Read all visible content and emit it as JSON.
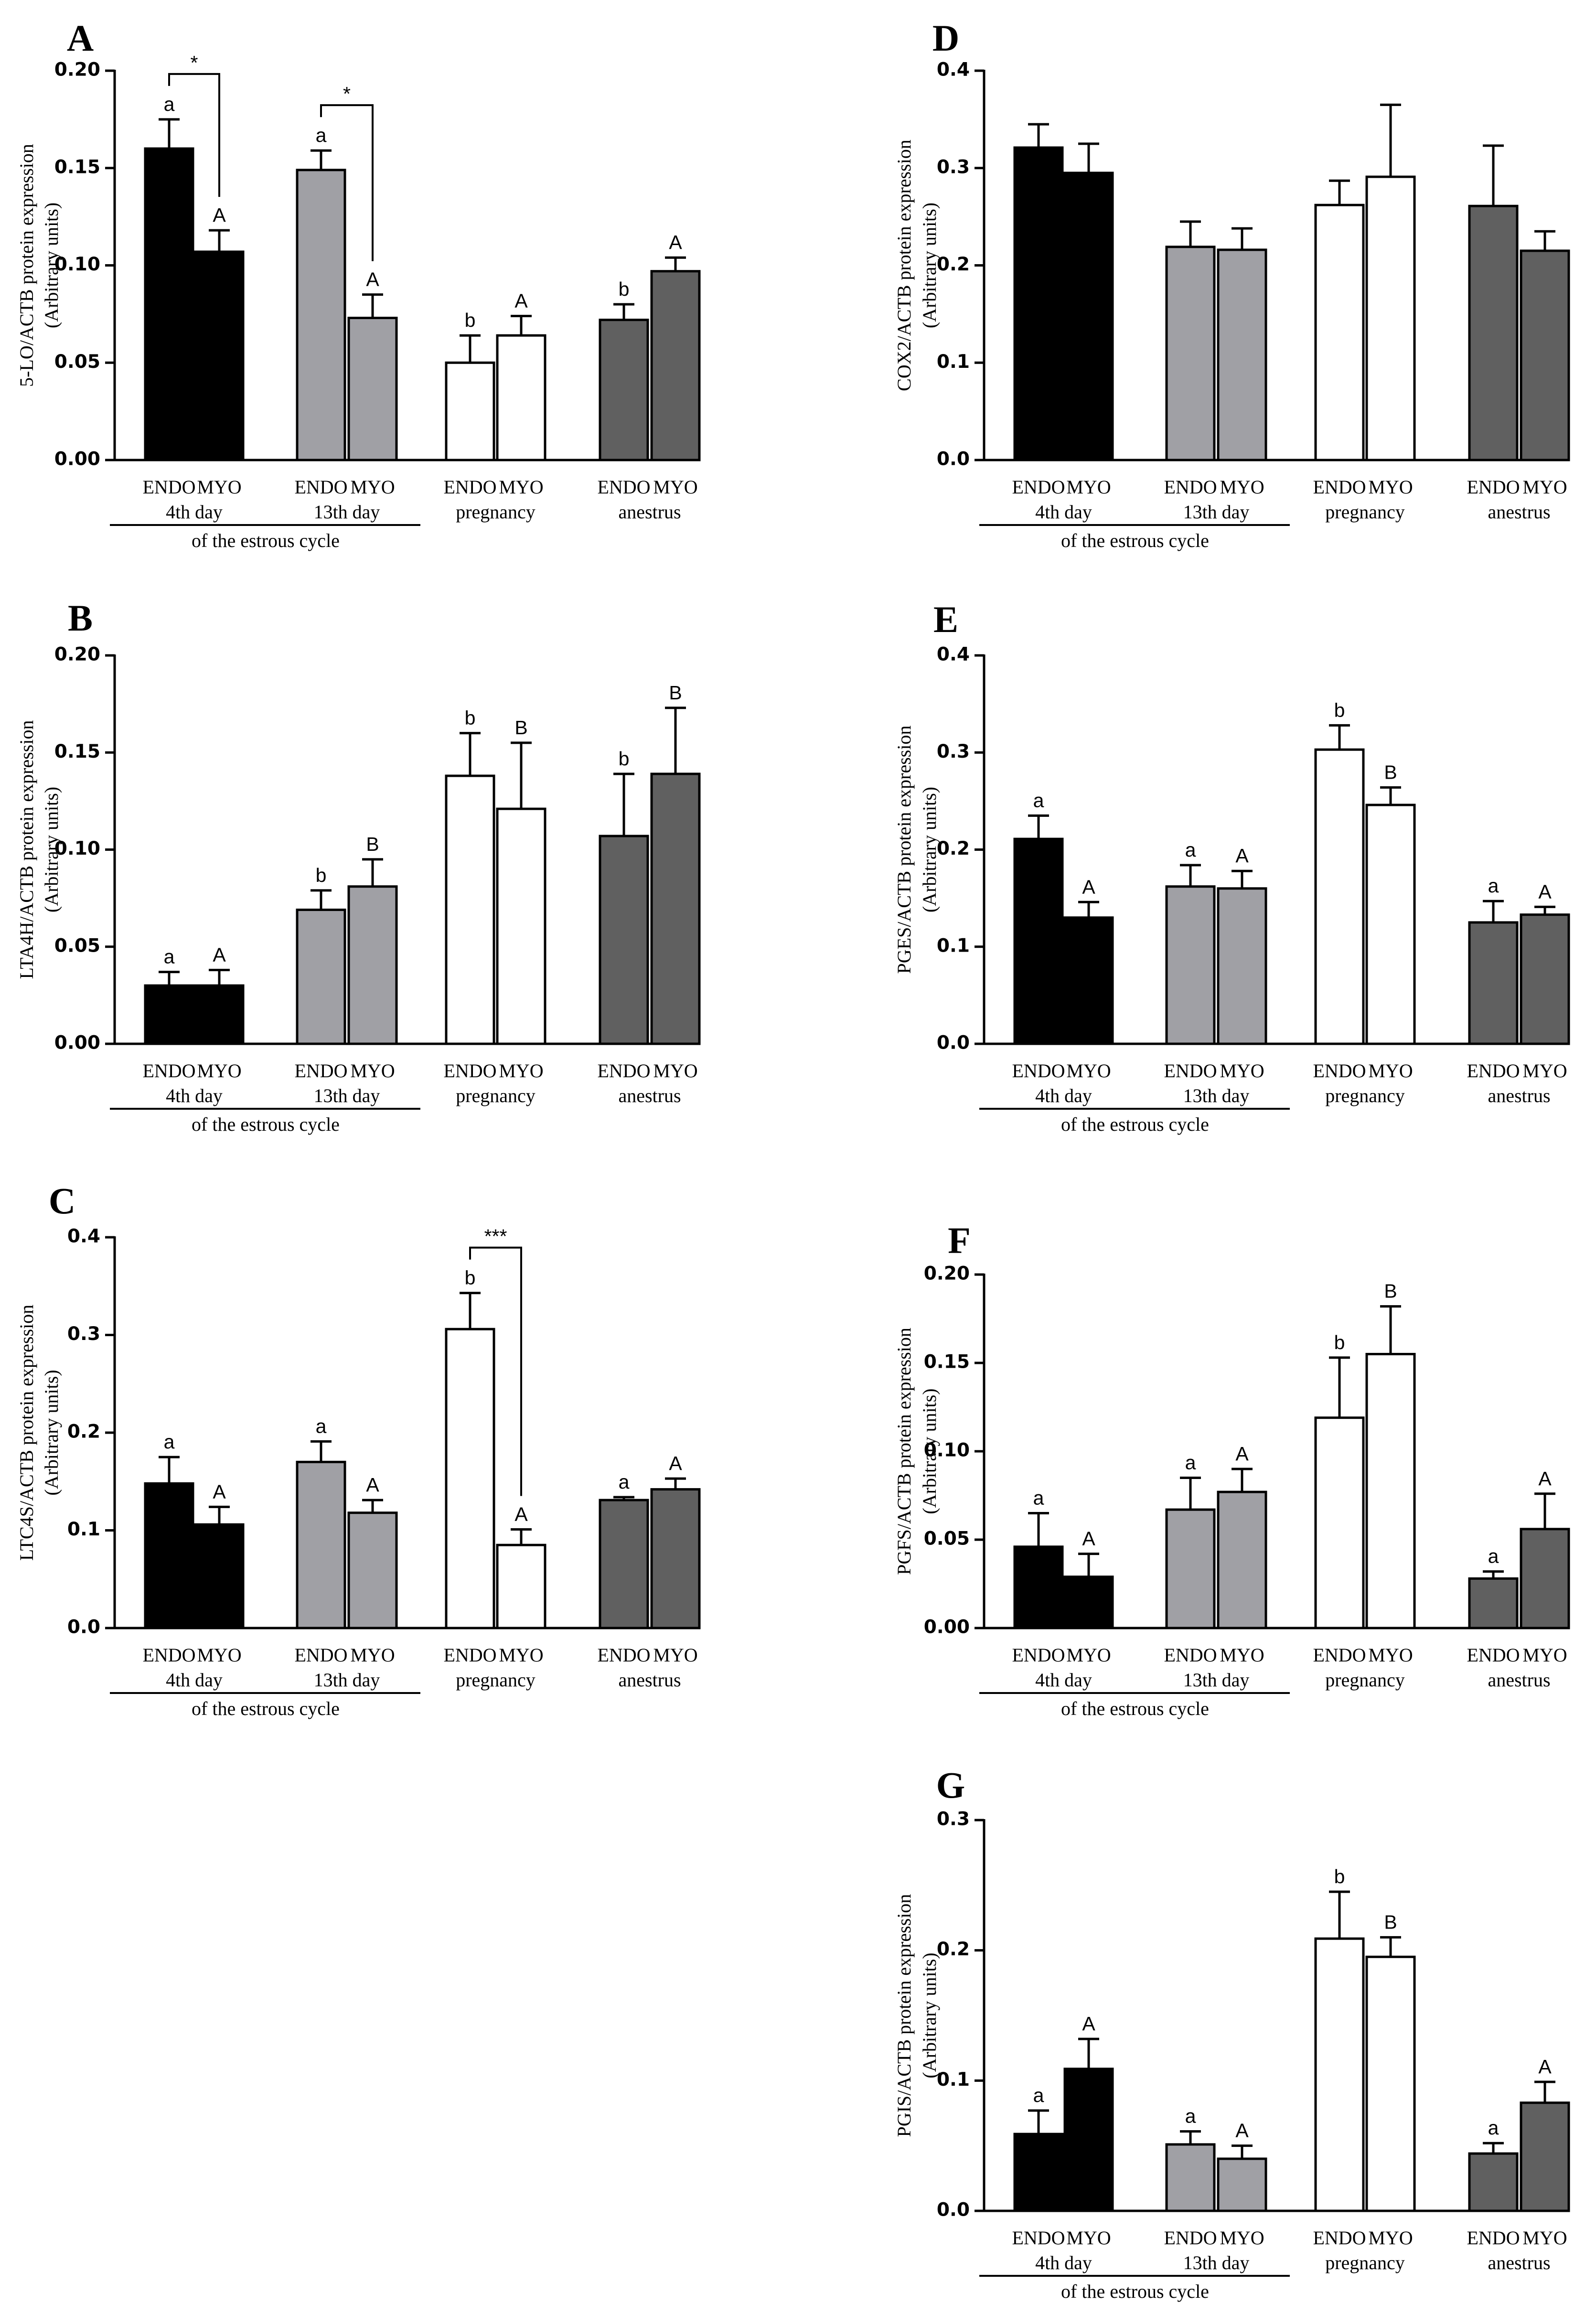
{
  "colors": {
    "endo4": "#000000",
    "d13": "#a0a0a5",
    "preg": "#ffffff",
    "anes": "#606060"
  },
  "chart_data": [
    {
      "type": "bar",
      "panel": "A",
      "ylabel": "5-LO/ACTB protein expression",
      "ylabel2": "(Arbitrary units)",
      "ylim": [
        0,
        0.2
      ],
      "yticks": [
        "0.00",
        "0.05",
        "0.10",
        "0.15",
        "0.20"
      ],
      "ytick_values": [
        0,
        0.05,
        0.1,
        0.15,
        0.2
      ],
      "categories": [
        "ENDO",
        "MYO",
        "ENDO",
        "MYO",
        "ENDO",
        "MYO",
        "ENDO",
        "MYO"
      ],
      "groups": [
        "4th day",
        "13th day",
        "pregnancy",
        "anestrus"
      ],
      "group_footer": "of the estrous cycle",
      "values": [
        0.16,
        0.107,
        0.149,
        0.073,
        0.05,
        0.064,
        0.072,
        0.097
      ],
      "errors": [
        0.015,
        0.011,
        0.01,
        0.012,
        0.014,
        0.01,
        0.008,
        0.007
      ],
      "labels": [
        "a",
        "A",
        "a",
        "A",
        "b",
        "A",
        "b",
        "A"
      ],
      "brackets": [
        {
          "from": 0,
          "to": 1,
          "text": "*"
        },
        {
          "from": 2,
          "to": 3,
          "text": "*"
        }
      ]
    },
    {
      "type": "bar",
      "panel": "B",
      "ylabel": "LTA4H/ACTB protein expression",
      "ylabel2": "(Arbitrary units)",
      "ylim": [
        0,
        0.2
      ],
      "yticks": [
        "0.00",
        "0.05",
        "0.10",
        "0.15",
        "0.20"
      ],
      "ytick_values": [
        0,
        0.05,
        0.1,
        0.15,
        0.2
      ],
      "categories": [
        "ENDO",
        "MYO",
        "ENDO",
        "MYO",
        "ENDO",
        "MYO",
        "ENDO",
        "MYO"
      ],
      "groups": [
        "4th day",
        "13th day",
        "pregnancy",
        "anestrus"
      ],
      "group_footer": "of the estrous cycle",
      "values": [
        0.03,
        0.03,
        0.069,
        0.081,
        0.138,
        0.121,
        0.107,
        0.139
      ],
      "errors": [
        0.007,
        0.008,
        0.01,
        0.014,
        0.022,
        0.034,
        0.032,
        0.034
      ],
      "labels": [
        "a",
        "A",
        "b",
        "B",
        "b",
        "B",
        "b",
        "B"
      ],
      "brackets": []
    },
    {
      "type": "bar",
      "panel": "C",
      "ylabel": "LTC4S/ACTB protein expression",
      "ylabel2": "(Arbitrary units)",
      "ylim": [
        0,
        0.4
      ],
      "yticks": [
        "0.0",
        "0.1",
        "0.2",
        "0.3",
        "0.4"
      ],
      "ytick_values": [
        0,
        0.1,
        0.2,
        0.3,
        0.4
      ],
      "categories": [
        "ENDO",
        "MYO",
        "ENDO",
        "MYO",
        "ENDO",
        "MYO",
        "ENDO",
        "MYO"
      ],
      "groups": [
        "4th day",
        "13th day",
        "pregnancy",
        "anestrus"
      ],
      "group_footer": "of the estrous cycle",
      "values": [
        0.148,
        0.106,
        0.17,
        0.118,
        0.306,
        0.085,
        0.131,
        0.142
      ],
      "errors": [
        0.027,
        0.018,
        0.021,
        0.013,
        0.037,
        0.016,
        0.003,
        0.011
      ],
      "labels": [
        "a",
        "A",
        "a",
        "A",
        "b",
        "A",
        "a",
        "A"
      ],
      "brackets": [
        {
          "from": 4,
          "to": 5,
          "text": "***"
        }
      ]
    },
    {
      "type": "bar",
      "panel": "D",
      "ylabel": "COX2/ACTB protein expression",
      "ylabel2": "(Arbitrary units)",
      "ylim": [
        0,
        0.4
      ],
      "yticks": [
        "0.0",
        "0.1",
        "0.2",
        "0.3",
        "0.4"
      ],
      "ytick_values": [
        0,
        0.1,
        0.2,
        0.3,
        0.4
      ],
      "categories": [
        "ENDO",
        "MYO",
        "ENDO",
        "MYO",
        "ENDO",
        "MYO",
        "ENDO",
        "MYO"
      ],
      "groups": [
        "4th day",
        "13th day",
        "pregnancy",
        "anestrus"
      ],
      "group_footer": "of the estrous cycle",
      "values": [
        0.321,
        0.295,
        0.219,
        0.216,
        0.262,
        0.291,
        0.261,
        0.215
      ],
      "errors": [
        0.024,
        0.03,
        0.026,
        0.022,
        0.025,
        0.074,
        0.062,
        0.02
      ],
      "labels": [
        "",
        "",
        "",
        "",
        "",
        "",
        "",
        ""
      ],
      "brackets": []
    },
    {
      "type": "bar",
      "panel": "E",
      "ylabel": "PGES/ACTB protein expression",
      "ylabel2": "(Arbitrary units)",
      "ylim": [
        0,
        0.4
      ],
      "yticks": [
        "0.0",
        "0.1",
        "0.2",
        "0.3",
        "0.4"
      ],
      "ytick_values": [
        0,
        0.1,
        0.2,
        0.3,
        0.4
      ],
      "categories": [
        "ENDO",
        "MYO",
        "ENDO",
        "MYO",
        "ENDO",
        "MYO",
        "ENDO",
        "MYO"
      ],
      "groups": [
        "4th day",
        "13th day",
        "pregnancy",
        "anestrus"
      ],
      "group_footer": "of the estrous cycle",
      "values": [
        0.211,
        0.13,
        0.162,
        0.16,
        0.303,
        0.246,
        0.125,
        0.133
      ],
      "errors": [
        0.024,
        0.016,
        0.022,
        0.018,
        0.025,
        0.018,
        0.022,
        0.008
      ],
      "labels": [
        "a",
        "A",
        "a",
        "A",
        "b",
        "B",
        "a",
        "A"
      ],
      "brackets": []
    },
    {
      "type": "bar",
      "panel": "F",
      "ylabel": "PGFS/ACTB protein expression",
      "ylabel2": "(Arbitrary units)",
      "ylim": [
        0,
        0.2
      ],
      "yticks": [
        "0.00",
        "0.05",
        "0.10",
        "0.15",
        "0.20"
      ],
      "ytick_values": [
        0,
        0.05,
        0.1,
        0.15,
        0.2
      ],
      "categories": [
        "ENDO",
        "MYO",
        "ENDO",
        "MYO",
        "ENDO",
        "MYO",
        "ENDO",
        "MYO"
      ],
      "groups": [
        "4th day",
        "13th day",
        "pregnancy",
        "anestrus"
      ],
      "group_footer": "of the estrous cycle",
      "values": [
        0.046,
        0.029,
        0.067,
        0.077,
        0.119,
        0.155,
        0.028,
        0.056
      ],
      "errors": [
        0.019,
        0.013,
        0.018,
        0.013,
        0.034,
        0.027,
        0.004,
        0.02
      ],
      "labels": [
        "a",
        "A",
        "a",
        "A",
        "b",
        "B",
        "a",
        "A"
      ],
      "brackets": []
    },
    {
      "type": "bar",
      "panel": "G",
      "ylabel": "PGIS/ACTB protein expression",
      "ylabel2": "(Arbitrary units)",
      "ylim": [
        0,
        0.3
      ],
      "yticks": [
        "0.0",
        "0.1",
        "0.2",
        "0.3"
      ],
      "ytick_values": [
        0,
        0.1,
        0.2,
        0.3
      ],
      "categories": [
        "ENDO",
        "MYO",
        "ENDO",
        "MYO",
        "ENDO",
        "MYO",
        "ENDO",
        "MYO"
      ],
      "groups": [
        "4th day",
        "13th day",
        "pregnancy",
        "anestrus"
      ],
      "group_footer": "of the estrous cycle",
      "values": [
        0.059,
        0.109,
        0.051,
        0.04,
        0.209,
        0.195,
        0.044,
        0.083
      ],
      "errors": [
        0.018,
        0.023,
        0.01,
        0.01,
        0.036,
        0.015,
        0.008,
        0.016
      ],
      "labels": [
        "a",
        "A",
        "a",
        "A",
        "b",
        "B",
        "a",
        "A"
      ],
      "brackets": []
    }
  ]
}
